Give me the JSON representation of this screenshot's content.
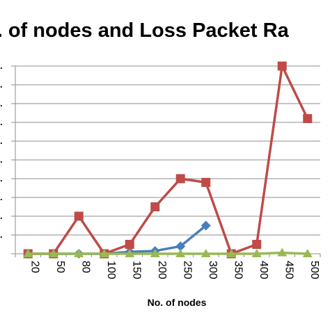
{
  "chart_data": {
    "type": "line",
    "title": "o. of nodes and Loss Packet Ra",
    "xlabel": "No. of nodes",
    "ylabel": "",
    "categories": [
      "20",
      "50",
      "80",
      "100",
      "150",
      "200",
      "250",
      "300",
      "350",
      "400",
      "450",
      "500"
    ],
    "ylim": [
      0,
      10
    ],
    "grid": true,
    "series": [
      {
        "color": "#4a7ebb",
        "marker": "diamond",
        "values": [
          0,
          0,
          0,
          0,
          0.1,
          0.15,
          0.4,
          1.5,
          null,
          null,
          null,
          null
        ]
      },
      {
        "color": "#be4b48",
        "marker": "square",
        "values": [
          0,
          0,
          2,
          0,
          0.5,
          2.5,
          4,
          3.8,
          0,
          0.5,
          10,
          7.2
        ]
      },
      {
        "color": "#98b954",
        "marker": "triangle",
        "values": [
          0,
          0,
          0,
          0,
          0,
          0,
          0,
          0,
          0,
          0,
          0.05,
          0
        ]
      }
    ]
  }
}
